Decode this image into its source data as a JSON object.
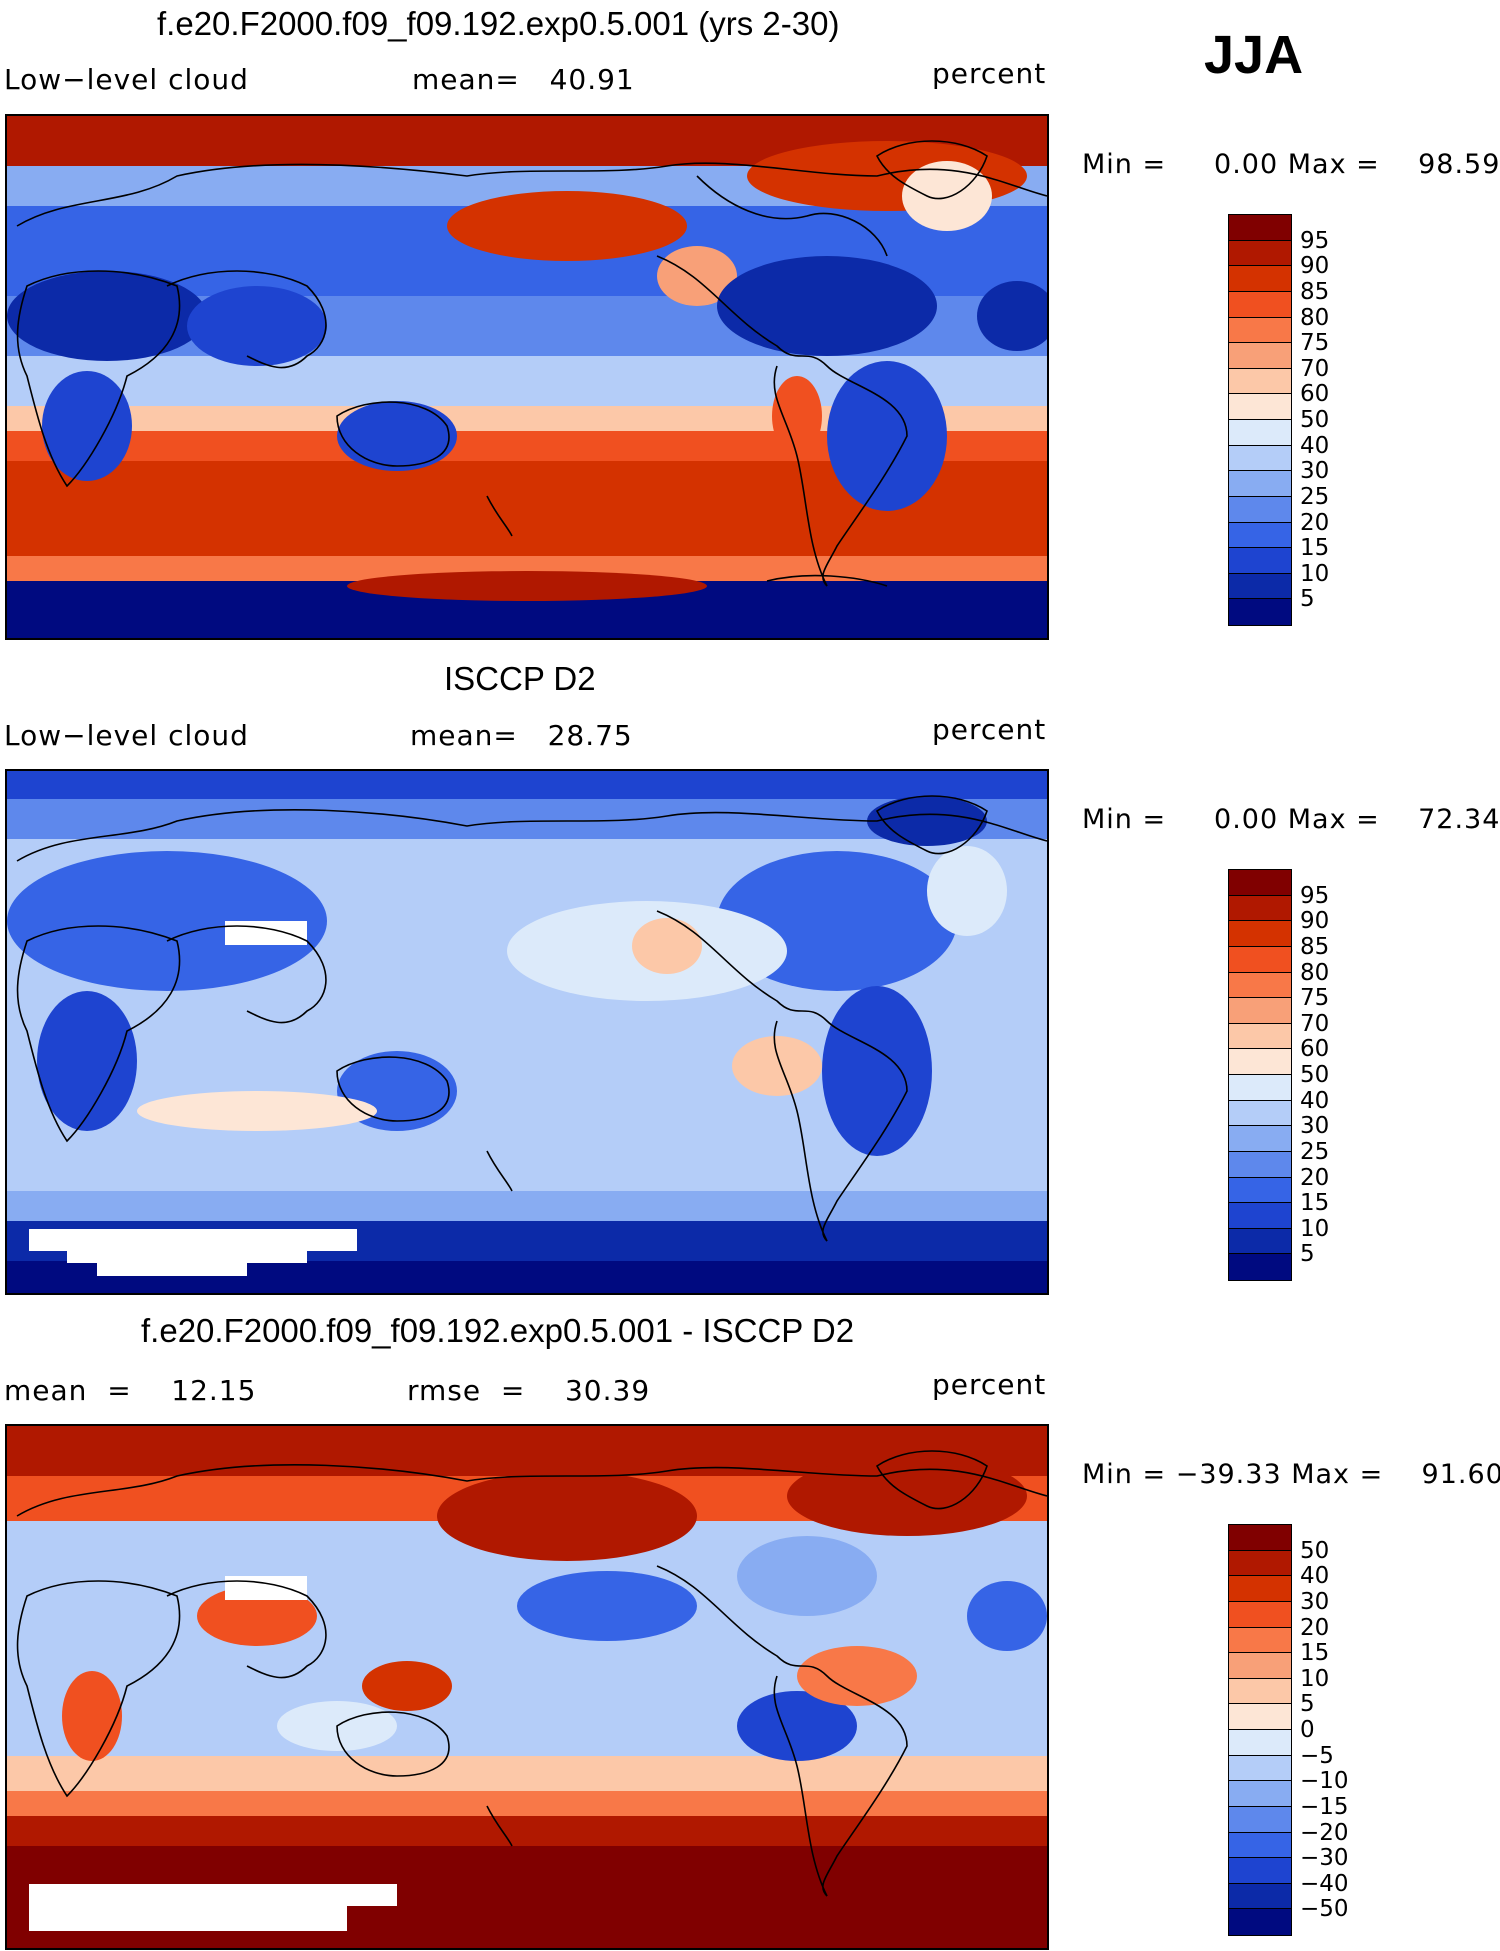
{
  "season": "JJA",
  "panels": [
    {
      "title": "f.e20.F2000.f09_f09.192.exp0.5.001 (yrs 2-30)",
      "left_label": "Low−level cloud",
      "stat1": "mean=   40.91",
      "stat2": "",
      "units": "percent",
      "minmax": "Min =     0.00 Max =    98.59"
    },
    {
      "title": "ISCCP D2",
      "left_label": "Low−level cloud",
      "stat1": "mean=   28.75",
      "stat2": "",
      "units": "percent",
      "minmax": "Min =     0.00 Max =    72.34"
    },
    {
      "title": "f.e20.F2000.f09_f09.192.exp0.5.001 - ISCCP D2",
      "left_label": "mean  =    12.15",
      "stat1": "rmse  =    30.39",
      "stat2": "",
      "units": "percent",
      "minmax": "Min = −39.33 Max =    91.60"
    }
  ],
  "chart_data": [
    {
      "type": "heatmap",
      "title": "f.e20.F2000.f09_f09.192.exp0.5.001 (yrs 2-30)",
      "variable": "Low-level cloud",
      "units": "percent",
      "mean": 40.91,
      "min": 0.0,
      "max": 98.59,
      "colorbar_levels": [
        "95",
        "90",
        "85",
        "80",
        "75",
        "70",
        "60",
        "50",
        "40",
        "30",
        "25",
        "20",
        "15",
        "10",
        "5"
      ],
      "colors": [
        "#800000",
        "#b01800",
        "#d43200",
        "#f05020",
        "#f87848",
        "#f8a078",
        "#fcc8a8",
        "#fde6d6",
        "#dceafa",
        "#b4cdf8",
        "#88acf2",
        "#5e88ec",
        "#3664e6",
        "#1e44d0",
        "#0c2aa8",
        "#000a80"
      ]
    },
    {
      "type": "heatmap",
      "title": "ISCCP D2",
      "variable": "Low-level cloud",
      "units": "percent",
      "mean": 28.75,
      "min": 0.0,
      "max": 72.34,
      "colorbar_levels": [
        "95",
        "90",
        "85",
        "80",
        "75",
        "70",
        "60",
        "50",
        "40",
        "30",
        "25",
        "20",
        "15",
        "10",
        "5"
      ],
      "colors": [
        "#800000",
        "#b01800",
        "#d43200",
        "#f05020",
        "#f87848",
        "#f8a078",
        "#fcc8a8",
        "#fde6d6",
        "#dceafa",
        "#b4cdf8",
        "#88acf2",
        "#5e88ec",
        "#3664e6",
        "#1e44d0",
        "#0c2aa8",
        "#000a80"
      ]
    },
    {
      "type": "heatmap",
      "title": "f.e20.F2000.f09_f09.192.exp0.5.001 - ISCCP D2",
      "variable": "Low-level cloud difference",
      "units": "percent",
      "mean": 12.15,
      "rmse": 30.39,
      "min": -39.33,
      "max": 91.6,
      "colorbar_levels": [
        "50",
        "40",
        "30",
        "20",
        "15",
        "10",
        "5",
        "0",
        "−5",
        "−10",
        "−15",
        "−20",
        "−30",
        "−40",
        "−50"
      ],
      "colors": [
        "#800000",
        "#b01800",
        "#d43200",
        "#f05020",
        "#f87848",
        "#f8a078",
        "#fcc8a8",
        "#fde6d6",
        "#dceafa",
        "#b4cdf8",
        "#88acf2",
        "#5e88ec",
        "#3664e6",
        "#1e44d0",
        "#0c2aa8",
        "#000a80"
      ]
    }
  ]
}
